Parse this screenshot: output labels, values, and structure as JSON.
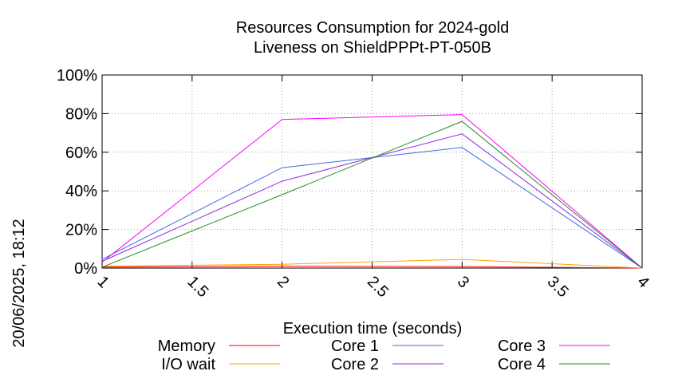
{
  "chart_data": {
    "type": "line",
    "title": "Resources Consumption for 2024-gold",
    "subtitle": "Liveness on ShieldPPPt-PT-050B",
    "xlabel": "Execution time (seconds)",
    "ylabel": "",
    "side_label": "20/06/2025, 18:12",
    "xlim": [
      1,
      4
    ],
    "ylim": [
      0,
      100
    ],
    "x_ticks": [
      1,
      1.5,
      2,
      2.5,
      3,
      3.5,
      4
    ],
    "x_tick_labels": [
      "1",
      "1.5",
      "2",
      "2.5",
      "3",
      "3.5",
      "4"
    ],
    "y_ticks": [
      0,
      20,
      40,
      60,
      80,
      100
    ],
    "y_tick_labels": [
      "0%",
      "20%",
      "40%",
      "60%",
      "80%",
      "100%"
    ],
    "grid": true,
    "legend_position": "bottom",
    "x": [
      1,
      2,
      3,
      4
    ],
    "series": [
      {
        "name": "Memory",
        "color": "#ff0000",
        "values": [
          0.5,
          1.0,
          0.8,
          0
        ]
      },
      {
        "name": "I/O wait",
        "color": "#ffa500",
        "values": [
          1.0,
          2.0,
          4.5,
          0
        ]
      },
      {
        "name": "Core 1",
        "color": "#4169e1",
        "values": [
          4.5,
          52,
          62.5,
          0
        ]
      },
      {
        "name": "Core 2",
        "color": "#8a2be2",
        "values": [
          3.5,
          45,
          69.5,
          0
        ]
      },
      {
        "name": "Core 3",
        "color": "#ff00ff",
        "values": [
          3.0,
          77,
          79.5,
          0
        ]
      },
      {
        "name": "Core 4",
        "color": "#228b22",
        "values": [
          0.5,
          38,
          76,
          0
        ]
      }
    ]
  }
}
